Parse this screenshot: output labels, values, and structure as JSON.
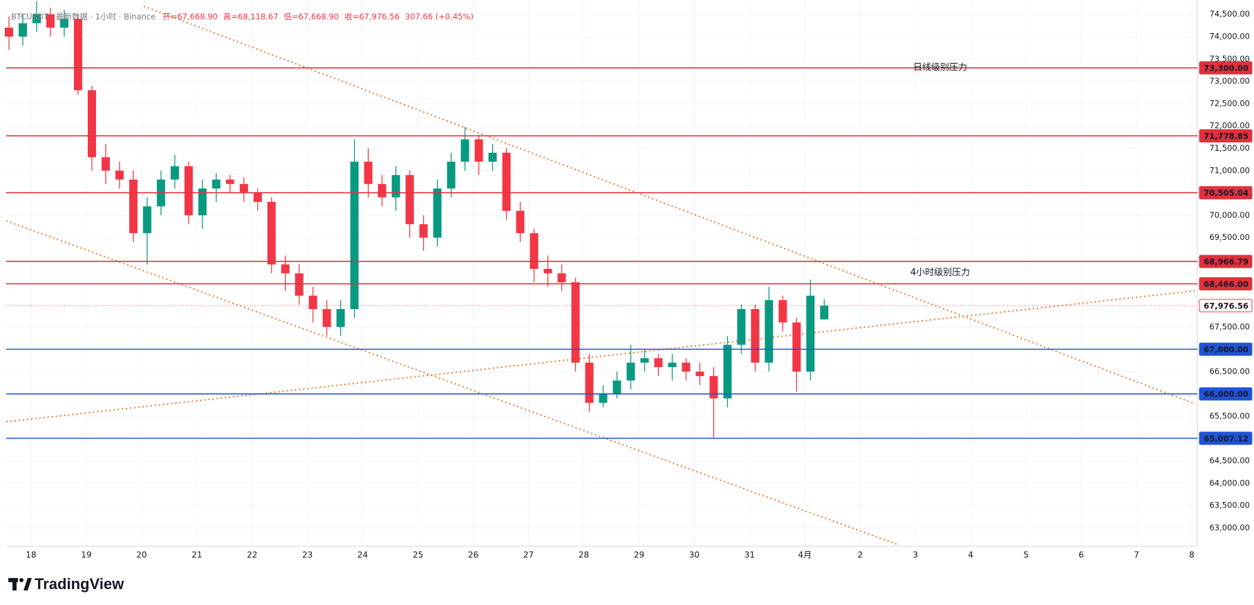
{
  "chart_data": {
    "type": "candlestick",
    "title": "BTCUSDT · 最新数据 · 1小时 · Binance",
    "ohlc_text": [
      "开=67,668.90",
      "高=68,118.67",
      "低=67,668.90",
      "收=67,976.56",
      "307.66 (+0.45%)"
    ],
    "brand": "TradingView",
    "up_color": "#089981",
    "down_color": "#f23645",
    "grid": true,
    "x": [
      -0.4,
      -0.15,
      0.1,
      0.35,
      0.6,
      0.85,
      1.1,
      1.35,
      1.6,
      1.85,
      2.1,
      2.35,
      2.6,
      2.85,
      3.1,
      3.35,
      3.6,
      3.85,
      4.1,
      4.35,
      4.6,
      4.85,
      5.1,
      5.35,
      5.6,
      5.85,
      6.1,
      6.35,
      6.6,
      6.85,
      7.1,
      7.35,
      7.6,
      7.85,
      8.1,
      8.35,
      8.6,
      8.85,
      9.1,
      9.35,
      9.6,
      9.85,
      10.1,
      10.35,
      10.6,
      10.85,
      11.1,
      11.35,
      11.6,
      11.85,
      12.1,
      12.35,
      12.6,
      12.85,
      13.1,
      13.35,
      13.6,
      13.85,
      14.1,
      14.35
    ],
    "open": [
      74200,
      74000,
      74300,
      74500,
      74200,
      74400,
      72800,
      71300,
      71000,
      70800,
      69600,
      70200,
      70800,
      71100,
      70000,
      70600,
      70800,
      70700,
      70500,
      70300,
      68900,
      68700,
      68200,
      67900,
      67500,
      67900,
      71200,
      70700,
      70400,
      70900,
      69800,
      69500,
      70600,
      71200,
      71700,
      71200,
      71400,
      70100,
      69600,
      68800,
      68700,
      68500,
      66700,
      65800,
      66000,
      66300,
      66700,
      66800,
      66600,
      66700,
      66500,
      66400,
      65900,
      67100,
      67900,
      66700,
      68100,
      67600,
      66500,
      67668.9
    ],
    "high": [
      74450,
      74500,
      74800,
      74650,
      74600,
      74500,
      72900,
      71600,
      71200,
      71000,
      70400,
      71000,
      71350,
      71200,
      70800,
      70950,
      70900,
      70850,
      70600,
      70400,
      69100,
      68900,
      68400,
      68100,
      68100,
      71700,
      71500,
      70900,
      71100,
      71000,
      70000,
      70800,
      71400,
      71980,
      71800,
      71600,
      71500,
      70300,
      69700,
      69100,
      68900,
      68600,
      66900,
      66200,
      66500,
      67100,
      67000,
      66900,
      66900,
      66800,
      66700,
      66600,
      67300,
      68000,
      68000,
      68400,
      68200,
      67700,
      68560,
      68118.67
    ],
    "low": [
      73700,
      73800,
      74100,
      74000,
      74000,
      72700,
      71000,
      70700,
      70600,
      69400,
      68900,
      70000,
      70600,
      69800,
      69700,
      70300,
      70500,
      70300,
      70100,
      68700,
      68300,
      68000,
      67600,
      67300,
      67300,
      67700,
      70400,
      70200,
      70100,
      69500,
      69200,
      69300,
      70400,
      71000,
      70900,
      71000,
      69900,
      69400,
      68500,
      68400,
      68300,
      66500,
      65600,
      65700,
      65900,
      66100,
      66500,
      66400,
      66300,
      66300,
      66200,
      65010,
      65700,
      66900,
      66500,
      66500,
      67400,
      66050,
      66300,
      67668.9
    ],
    "close": [
      74000,
      74300,
      74500,
      74200,
      74400,
      72800,
      71300,
      71000,
      70800,
      69600,
      70200,
      70800,
      71100,
      70000,
      70600,
      70800,
      70700,
      70500,
      70300,
      68900,
      68700,
      68200,
      67900,
      67500,
      67900,
      71200,
      70700,
      70400,
      70900,
      69800,
      69500,
      70600,
      71200,
      71700,
      71200,
      71400,
      70100,
      69600,
      68800,
      68700,
      68500,
      66700,
      65800,
      66000,
      66300,
      66700,
      66800,
      66600,
      66700,
      66500,
      66400,
      65900,
      67100,
      67900,
      66700,
      68100,
      67600,
      66500,
      68200,
      67976.56
    ],
    "xlim": [
      -0.45,
      21.1
    ],
    "xticks": [
      {
        "value": 0,
        "label": "18"
      },
      {
        "value": 1,
        "label": "19"
      },
      {
        "value": 2,
        "label": "20"
      },
      {
        "value": 3,
        "label": "21"
      },
      {
        "value": 4,
        "label": "22"
      },
      {
        "value": 5,
        "label": "23"
      },
      {
        "value": 6,
        "label": "24"
      },
      {
        "value": 7,
        "label": "25"
      },
      {
        "value": 8,
        "label": "26"
      },
      {
        "value": 9,
        "label": "27"
      },
      {
        "value": 10,
        "label": "28"
      },
      {
        "value": 11,
        "label": "29"
      },
      {
        "value": 12,
        "label": "30"
      },
      {
        "value": 13,
        "label": "31"
      },
      {
        "value": 14,
        "label": "4月"
      },
      {
        "value": 15,
        "label": "2"
      },
      {
        "value": 16,
        "label": "3"
      },
      {
        "value": 17,
        "label": "4"
      },
      {
        "value": 18,
        "label": "5"
      },
      {
        "value": 19,
        "label": "6"
      },
      {
        "value": 20,
        "label": "7"
      },
      {
        "value": 21,
        "label": "8"
      }
    ],
    "ylim": [
      62590,
      74820
    ],
    "yticks": [
      {
        "value": 63000,
        "label": "63,000.00"
      },
      {
        "value": 63500,
        "label": "63,500.00"
      },
      {
        "value": 64000,
        "label": "64,000.00"
      },
      {
        "value": 64500,
        "label": "64,500.00"
      },
      {
        "value": 65500,
        "label": "65,500.00"
      },
      {
        "value": 66500,
        "label": "66,500.00"
      },
      {
        "value": 67500,
        "label": "67,500.00"
      },
      {
        "value": 69500,
        "label": "69,500.00"
      },
      {
        "value": 70000,
        "label": "70,000.00"
      },
      {
        "value": 71000,
        "label": "71,000.00"
      },
      {
        "value": 71500,
        "label": "71,500.00"
      },
      {
        "value": 72000,
        "label": "72,000.00"
      },
      {
        "value": 72500,
        "label": "72,500.00"
      },
      {
        "value": 73000,
        "label": "73,000.00"
      },
      {
        "value": 73500,
        "label": "73,500.00"
      },
      {
        "value": 74000,
        "label": "74,000.00"
      },
      {
        "value": 74500,
        "label": "74,500.00"
      }
    ],
    "levels": [
      {
        "value": 73300,
        "label": "73,300.00",
        "color": "#e0313c",
        "note": "日线级别压力"
      },
      {
        "value": 71778.85,
        "label": "71,778.85",
        "color": "#e0313c"
      },
      {
        "value": 70505.04,
        "label": "70,505.04",
        "color": "#e0313c"
      },
      {
        "value": 68966.79,
        "label": "68,966.79",
        "color": "#e0313c"
      },
      {
        "value": 68466,
        "label": "68,466.00",
        "color": "#e0313c",
        "note": "4小时级别压力"
      },
      {
        "value": 67976.56,
        "label": "67,976.56",
        "color": "#f23645",
        "dotted": true
      },
      {
        "value": 67000,
        "label": "67,000.00",
        "color": "#2153d6"
      },
      {
        "value": 66000,
        "label": "66,000.00",
        "color": "#2153d6"
      },
      {
        "value": 65007.12,
        "label": "65,007.12",
        "color": "#2153d6"
      }
    ],
    "trendline_color": "#e8772e",
    "trendlines": [
      {
        "x": [
          2.04,
          21.07
        ],
        "y": [
          74680,
          65772
        ]
      },
      {
        "x": [
          -0.45,
          15.69
        ],
        "y": [
          69875,
          62623
        ]
      },
      {
        "x": [
          -0.45,
          21.07
        ],
        "y": [
          65376,
          68310
        ]
      }
    ]
  }
}
